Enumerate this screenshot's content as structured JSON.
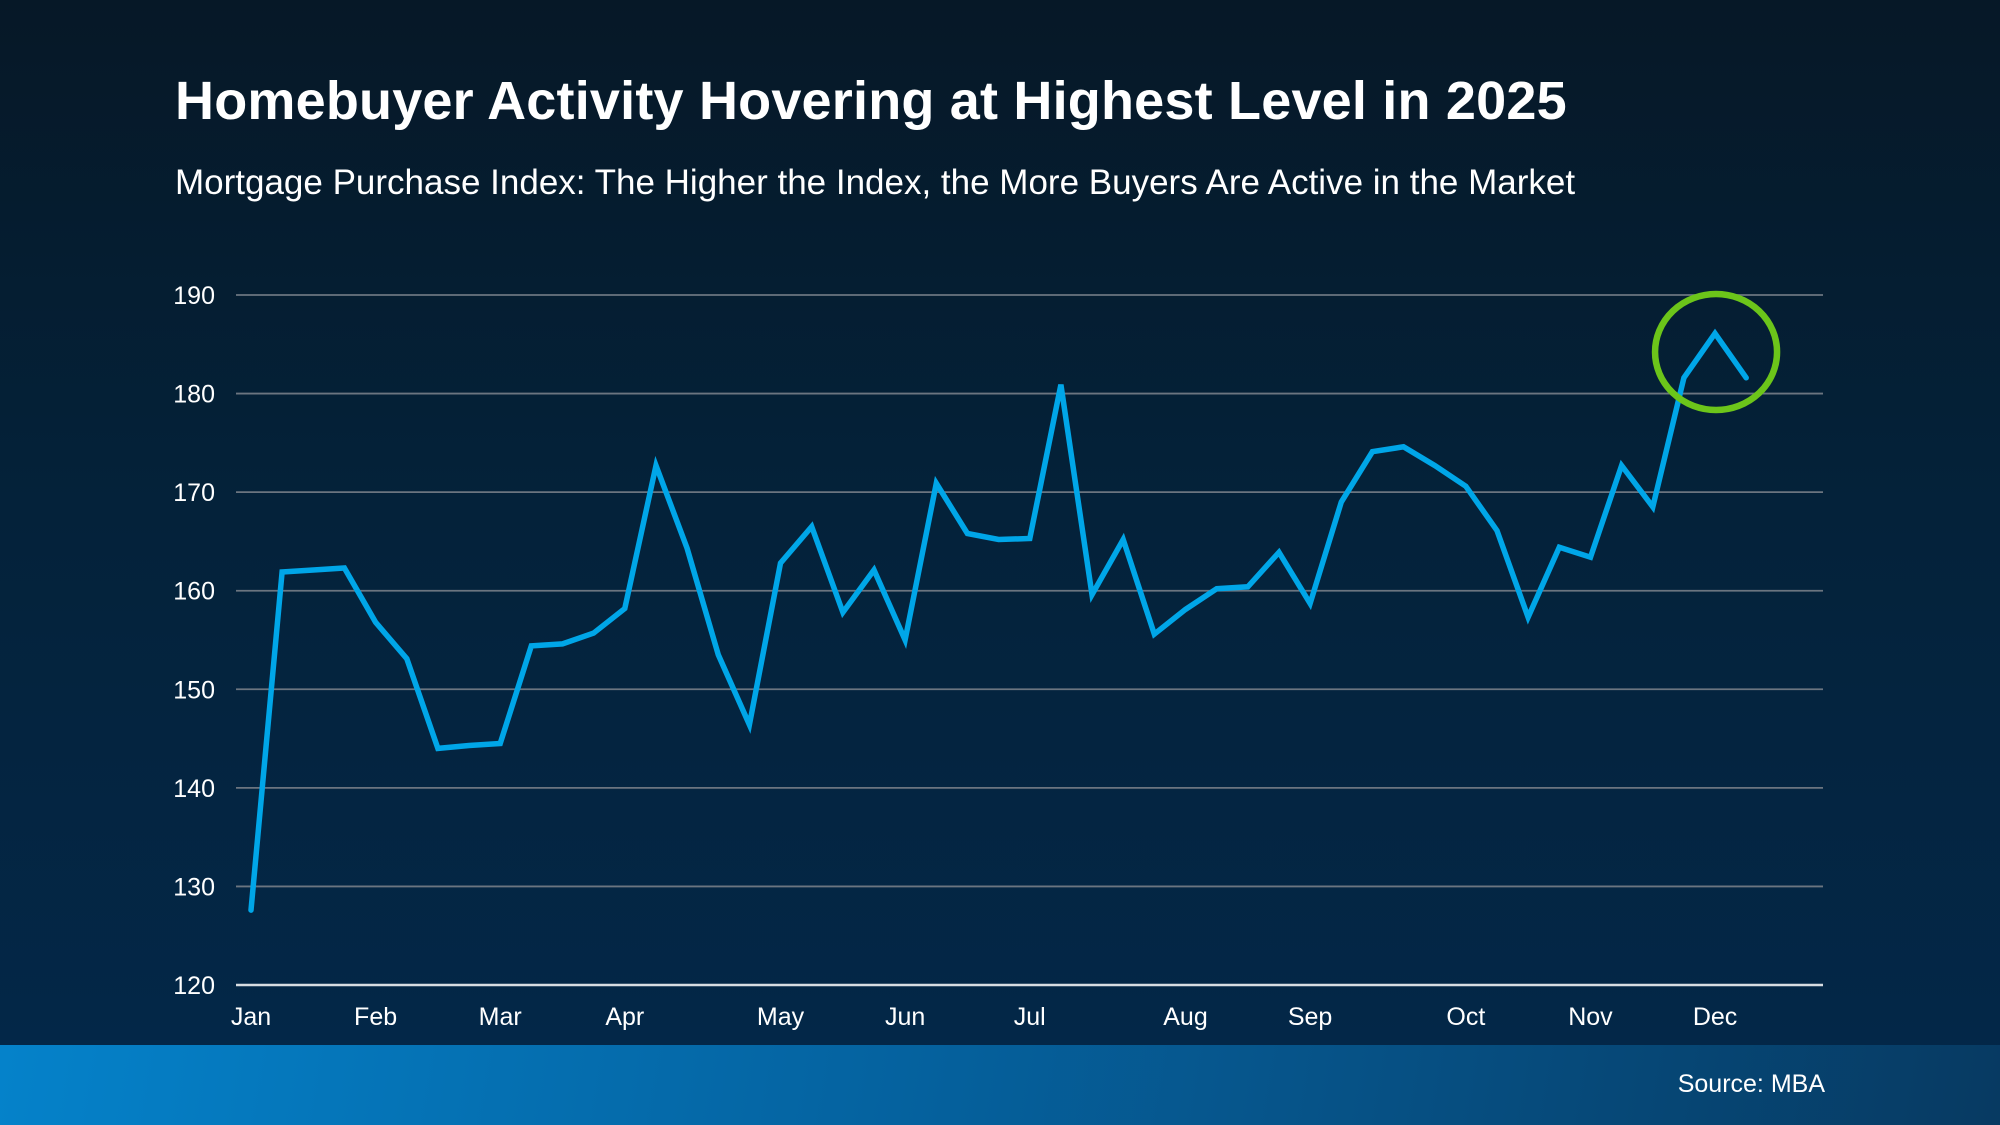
{
  "chart_data": {
    "type": "line",
    "title": "Homebuyer Activity Hovering at Highest Level in 2025",
    "subtitle": "Mortgage Purchase Index: The Higher the Index, the More Buyers Are Active in the Market",
    "xlabel": "",
    "ylabel": "",
    "ylim": [
      120,
      190
    ],
    "yticks": [
      "120",
      "130",
      "140",
      "150",
      "160",
      "170",
      "180",
      "190"
    ],
    "grid": true,
    "x_tick_labels": [
      {
        "label": "Jan",
        "index": 0
      },
      {
        "label": "Feb",
        "index": 4
      },
      {
        "label": "Mar",
        "index": 8
      },
      {
        "label": "Apr",
        "index": 12
      },
      {
        "label": "May",
        "index": 17
      },
      {
        "label": "Jun",
        "index": 21
      },
      {
        "label": "Jul",
        "index": 25
      },
      {
        "label": "Aug",
        "index": 30
      },
      {
        "label": "Sep",
        "index": 34
      },
      {
        "label": "Oct",
        "index": 39
      },
      {
        "label": "Nov",
        "index": 43
      },
      {
        "label": "Dec",
        "index": 47
      }
    ],
    "series": [
      {
        "color": "#00a6e8",
        "values": [
          127.6,
          161.9,
          162.1,
          162.3,
          156.8,
          153.1,
          144.0,
          144.3,
          144.5,
          154.4,
          154.6,
          155.7,
          158.2,
          172.7,
          164.3,
          153.5,
          146.4,
          162.8,
          166.5,
          157.8,
          162.1,
          155.0,
          170.9,
          165.8,
          165.2,
          165.3,
          180.9,
          159.6,
          165.2,
          155.6,
          158.1,
          160.2,
          160.4,
          163.9,
          158.7,
          169.0,
          174.1,
          174.6,
          172.7,
          170.6,
          166.1,
          157.3,
          164.4,
          163.4,
          172.7,
          168.5,
          181.6,
          186.1,
          181.6
        ]
      }
    ],
    "highlight": {
      "shape": "circle",
      "color": "#6cc51a",
      "index": 47
    }
  },
  "footer": {
    "source": "Source: MBA"
  }
}
